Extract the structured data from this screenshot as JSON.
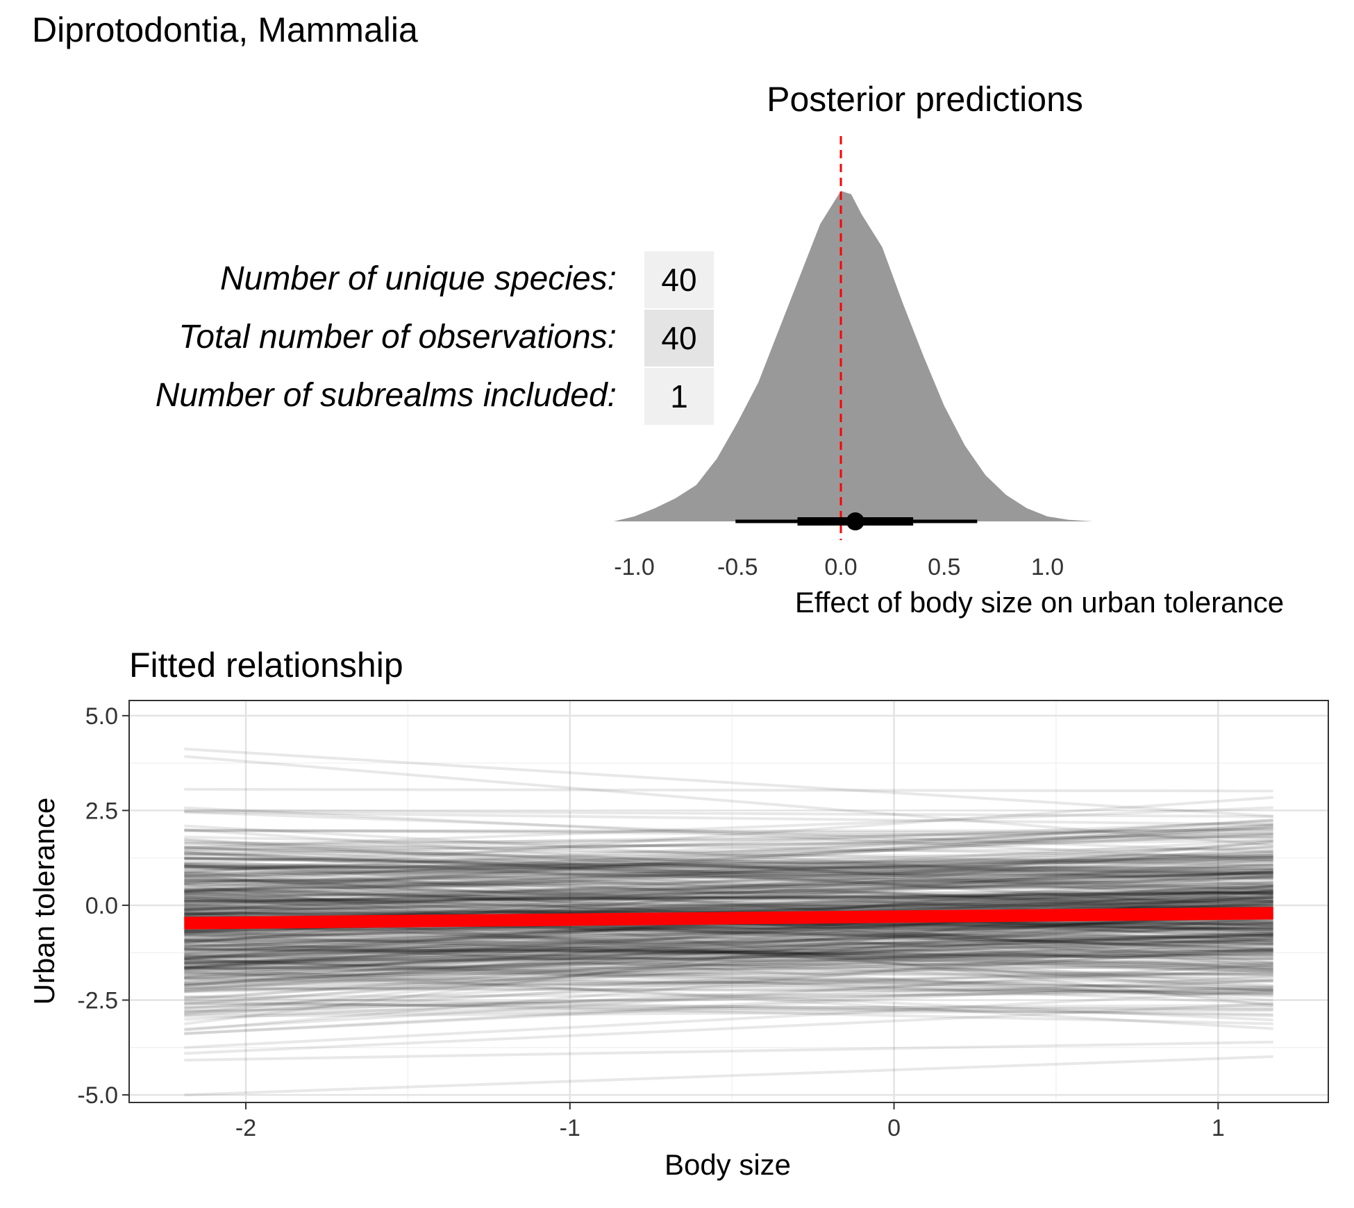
{
  "title": "Diprotodontia, Mammalia",
  "stats": [
    {
      "label": "Number of unique species:",
      "value": "40"
    },
    {
      "label": "Total number of observations:",
      "value": "40"
    },
    {
      "label": "Number of subrealms included:",
      "value": "1"
    }
  ],
  "chart_data": [
    {
      "type": "area",
      "title": "Posterior predictions",
      "xlabel": "Effect of body size on urban tolerance",
      "xlim": [
        -1.1,
        1.22
      ],
      "xticks": [
        -1.0,
        -0.5,
        0.0,
        0.5,
        1.0
      ],
      "xtick_labels": [
        "-1.0",
        "-0.5",
        "0.0",
        "0.5",
        "1.0"
      ],
      "density": {
        "x": [
          -1.1,
          -1.0,
          -0.9,
          -0.8,
          -0.7,
          -0.6,
          -0.5,
          -0.4,
          -0.3,
          -0.2,
          -0.1,
          0.0,
          0.05,
          0.1,
          0.2,
          0.3,
          0.4,
          0.5,
          0.6,
          0.7,
          0.8,
          0.9,
          1.0,
          1.1,
          1.22
        ],
        "y": [
          0.0,
          0.015,
          0.04,
          0.07,
          0.11,
          0.19,
          0.3,
          0.42,
          0.58,
          0.74,
          0.9,
          1.0,
          0.99,
          0.93,
          0.83,
          0.66,
          0.5,
          0.35,
          0.23,
          0.14,
          0.08,
          0.04,
          0.015,
          0.005,
          0.0
        ]
      },
      "point_estimate": 0.07,
      "interval_66": [
        -0.21,
        0.35
      ],
      "interval_95": [
        -0.51,
        0.66
      ],
      "reference_line": 0.0,
      "colors": {
        "fill": "#999999",
        "reference": "#ff0000",
        "interval": "#000000"
      }
    },
    {
      "type": "line",
      "title": "Fitted relationship",
      "xlabel": "Body size",
      "ylabel": "Urban tolerance",
      "xlim": [
        -2.36,
        1.34
      ],
      "ylim": [
        -5.2,
        5.4
      ],
      "xticks": [
        -2,
        -1,
        0,
        1
      ],
      "xtick_labels": [
        "-2",
        "-1",
        "0",
        "1"
      ],
      "yticks": [
        -5.0,
        -2.5,
        0.0,
        2.5,
        5.0
      ],
      "ytick_labels": [
        "-5.0",
        "-2.5",
        "0.0",
        "2.5",
        "5.0"
      ],
      "x_range": [
        -2.19,
        1.17
      ],
      "grid": true,
      "mean_line": {
        "x": [
          -2.19,
          1.17
        ],
        "y": [
          -0.47,
          -0.21
        ]
      },
      "posterior_draws": {
        "count": 400,
        "intercept_mean": -0.3,
        "intercept_sd": 1.2,
        "slope_mean": 0.07,
        "slope_sd": 0.3
      },
      "colors": {
        "mean": "#ff0000",
        "draws": "#000000"
      }
    }
  ]
}
